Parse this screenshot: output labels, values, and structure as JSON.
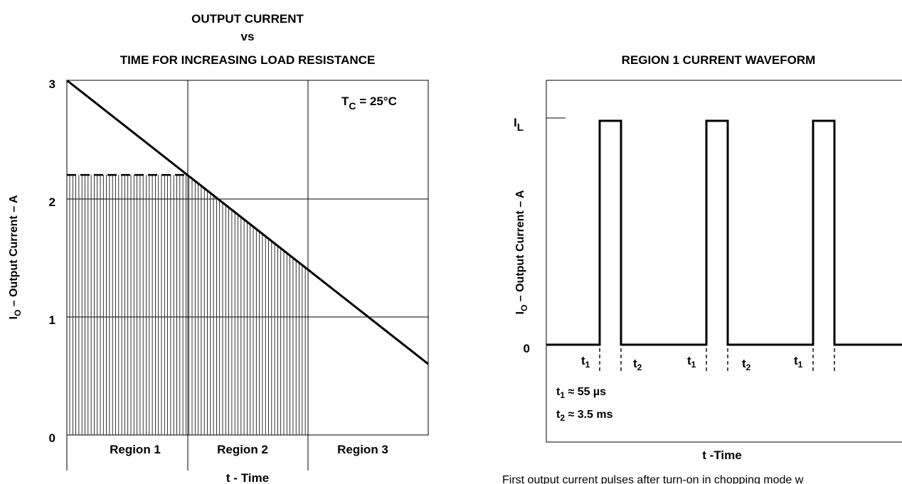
{
  "chart_data": [
    {
      "type": "line",
      "title_lines": [
        "OUTPUT CURRENT",
        "vs",
        "TIME FOR INCREASING LOAD RESISTANCE"
      ],
      "ylabel_main": "I",
      "ylabel_sub": "O",
      "ylabel_rest": " – Output Current – A",
      "xlabel": "t - Time",
      "ylim": [
        0,
        3
      ],
      "xlim": [
        0,
        3
      ],
      "yticks": [
        "0",
        "1",
        "2",
        "3"
      ],
      "grid": true,
      "annotation_main": "T",
      "annotation_sub": "C",
      "annotation_rest": " = 25°C",
      "regions": [
        "Region 1",
        "Region 2",
        "Region 3"
      ],
      "series": [
        {
          "x": [
            0,
            3
          ],
          "y": [
            3.0,
            0.6
          ]
        }
      ],
      "limit_curve": {
        "x": [
          0,
          1,
          2
        ],
        "y": [
          2.2,
          2.2,
          1.4
        ]
      },
      "hatched_region_x": [
        0,
        2
      ]
    },
    {
      "type": "line",
      "title": "REGION 1 CURRENT WAVEFORM",
      "ylabel_main": "I",
      "ylabel_sub": "O",
      "ylabel_rest": " – Output Current – A",
      "xlabel": "t -Time",
      "yticks": [
        {
          "main": "0",
          "sub": ""
        },
        {
          "main": "I",
          "sub": "L"
        }
      ],
      "pulses": [
        {
          "start": 1.0,
          "end": 1.3
        },
        {
          "start": 2.5,
          "end": 2.8
        },
        {
          "start": 4.0,
          "end": 4.3
        }
      ],
      "pulse_labels": [
        {
          "main": "t",
          "sub": "1"
        },
        {
          "main": "t",
          "sub": "2"
        },
        {
          "main": "t",
          "sub": "1"
        },
        {
          "main": "t",
          "sub": "2"
        },
        {
          "main": "t",
          "sub": "1"
        }
      ],
      "notes": [
        {
          "main": "t",
          "sub": "1",
          "rest": " ≈  55 µs"
        },
        {
          "main": "t",
          "sub": "2",
          "rest": " ≈ 3.5 ms"
        }
      ],
      "caption": "First output current pulses after turn-on in chopping mode w"
    }
  ]
}
